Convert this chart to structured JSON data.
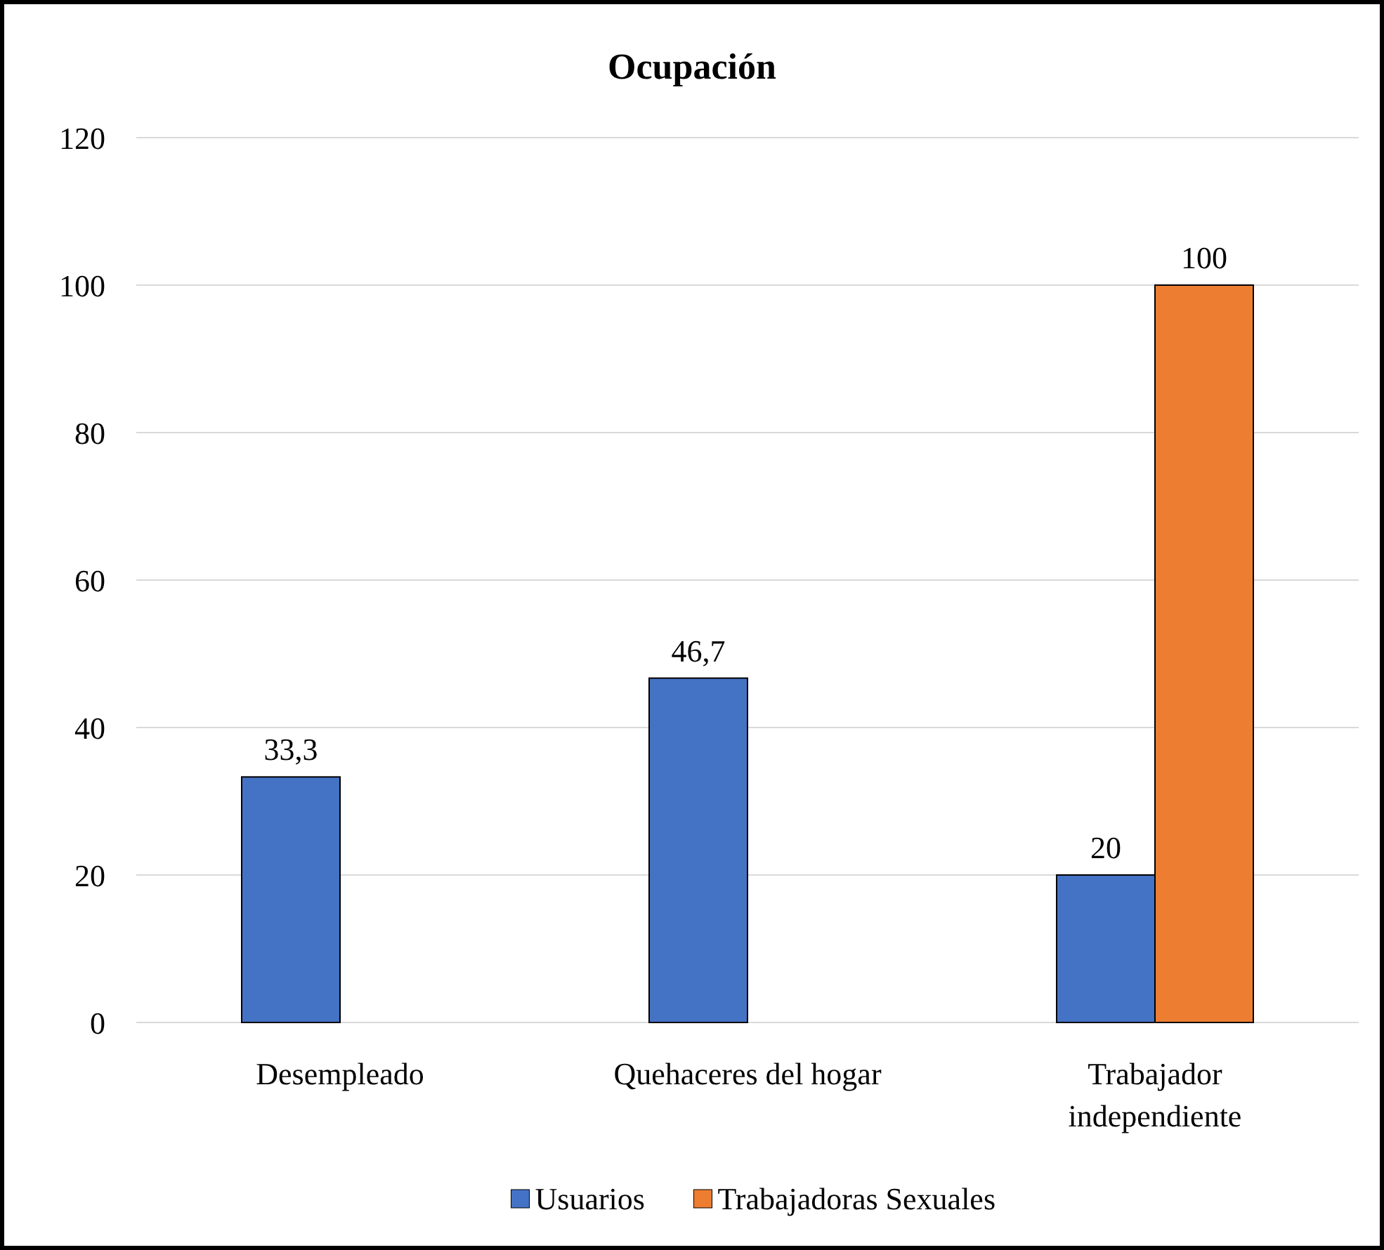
{
  "chart_data": {
    "type": "bar",
    "title": "Ocupación",
    "categories": [
      "Desempleado",
      "Quehaceres del hogar",
      "Trabajador\nindependiente"
    ],
    "series": [
      {
        "name": "Usuarios",
        "color": "#4472c4",
        "values": [
          33.3,
          46.7,
          20
        ],
        "value_labels": [
          "33,3",
          "46,7",
          "20"
        ]
      },
      {
        "name": "Trabajadoras Sexuales",
        "color": "#ed7d31",
        "values": [
          null,
          null,
          100
        ],
        "value_labels": [
          null,
          null,
          "100"
        ]
      }
    ],
    "ylim": [
      0,
      120
    ],
    "yticks": [
      0,
      20,
      40,
      60,
      80,
      100,
      120
    ],
    "grid": "y",
    "legend": "bottom"
  }
}
